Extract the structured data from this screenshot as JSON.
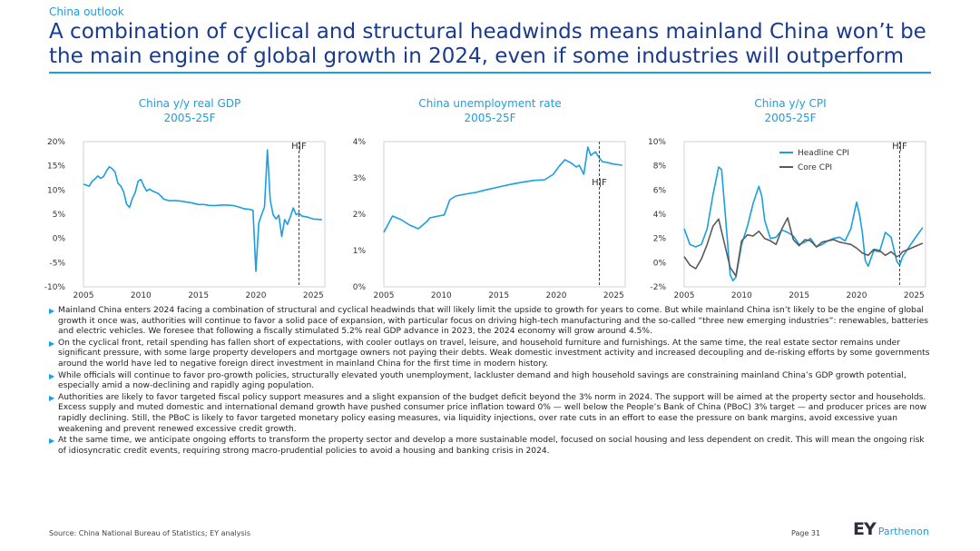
{
  "header": {
    "section": "China outlook",
    "title": "A combination of cyclical and structural headwinds means mainland China won’t be the main engine of global growth in 2024, even if some industries will outperform"
  },
  "chart_data": [
    {
      "type": "line",
      "title": "China y/y real GDP",
      "subtitle": "2005-25F",
      "marker_label": "H|F",
      "marker_x": 2023.75,
      "ylim": [
        -10,
        20
      ],
      "yticks": [
        -10,
        -5,
        0,
        5,
        10,
        15,
        20
      ],
      "ytick_labels": [
        "-10%",
        "-5%",
        "0%",
        "5%",
        "10%",
        "15%",
        "20%"
      ],
      "xlim": [
        2005,
        2026
      ],
      "xticks": [
        2005,
        2010,
        2015,
        2020,
        2025
      ],
      "xtick_labels": [
        "2005",
        "2010",
        "2015",
        "2020",
        "2025"
      ],
      "series": [
        {
          "name": "",
          "color": "#1a9fe0",
          "x": [
            2005,
            2005.25,
            2005.5,
            2005.75,
            2006,
            2006.25,
            2006.5,
            2006.75,
            2007,
            2007.25,
            2007.5,
            2007.75,
            2008,
            2008.25,
            2008.5,
            2008.75,
            2009,
            2009.25,
            2009.5,
            2009.75,
            2010,
            2010.25,
            2010.5,
            2010.75,
            2011,
            2011.5,
            2012,
            2012.5,
            2013,
            2013.5,
            2014,
            2014.5,
            2015,
            2015.5,
            2016,
            2016.5,
            2017,
            2017.5,
            2018,
            2018.5,
            2019,
            2019.5,
            2019.75,
            2020,
            2020.25,
            2020.5,
            2020.75,
            2021,
            2021.25,
            2021.5,
            2021.75,
            2022,
            2022.25,
            2022.5,
            2022.75,
            2023,
            2023.25,
            2023.5,
            2023.75,
            2024,
            2024.5,
            2025,
            2025.75
          ],
          "y": [
            11.2,
            11.0,
            10.8,
            11.8,
            12.3,
            12.9,
            12.4,
            12.8,
            13.9,
            14.8,
            14.4,
            13.7,
            11.4,
            10.8,
            9.6,
            7.1,
            6.4,
            8.2,
            9.5,
            11.8,
            12.2,
            10.8,
            9.8,
            10.2,
            9.8,
            9.3,
            8.1,
            7.8,
            7.8,
            7.7,
            7.5,
            7.3,
            7.0,
            7.0,
            6.8,
            6.8,
            6.9,
            6.9,
            6.8,
            6.5,
            6.1,
            6.0,
            5.8,
            -6.8,
            3.2,
            4.9,
            6.5,
            18.3,
            7.9,
            4.9,
            4.0,
            4.8,
            0.4,
            3.9,
            2.9,
            4.5,
            6.3,
            4.9,
            5.2,
            4.6,
            4.4,
            4.0,
            3.9
          ]
        }
      ]
    },
    {
      "type": "line",
      "title": "China unemployment rate",
      "subtitle": "2005-25F",
      "marker_label": "H|F",
      "marker_x": 2023.75,
      "ylim": [
        0,
        4
      ],
      "yticks": [
        0,
        1,
        2,
        3,
        4
      ],
      "ytick_labels": [
        "0%",
        "1%",
        "2%",
        "3%",
        "4%"
      ],
      "xlim": [
        2005,
        2026
      ],
      "xticks": [
        2005,
        2010,
        2015,
        2020,
        2025
      ],
      "xtick_labels": [
        "2005",
        "2010",
        "2015",
        "2020",
        "2025"
      ],
      "series": [
        {
          "name": "",
          "color": "#1a9fe0",
          "x": [
            2005,
            2005.75,
            2006.5,
            2007.25,
            2008,
            2008.75,
            2009,
            2009.75,
            2010.25,
            2010.75,
            2011.25,
            2012,
            2013,
            2014,
            2015,
            2016,
            2017,
            2018,
            2019,
            2019.75,
            2020.25,
            2020.75,
            2021.25,
            2021.75,
            2022,
            2022.4,
            2022.75,
            2023,
            2023.4,
            2023.75,
            2024,
            2024.5,
            2025,
            2025.75
          ],
          "y": [
            1.5,
            1.95,
            1.85,
            1.7,
            1.6,
            1.8,
            1.9,
            1.95,
            1.98,
            2.4,
            2.5,
            2.55,
            2.6,
            2.68,
            2.75,
            2.82,
            2.88,
            2.93,
            2.95,
            3.1,
            3.32,
            3.5,
            3.42,
            3.3,
            3.35,
            3.1,
            3.85,
            3.62,
            3.72,
            3.55,
            3.45,
            3.42,
            3.38,
            3.35
          ]
        }
      ]
    },
    {
      "type": "line",
      "title": "China y/y CPI",
      "subtitle": "2005-25F",
      "marker_label": "H|F",
      "marker_x": 2023.75,
      "ylim": [
        -2,
        10
      ],
      "yticks": [
        -2,
        0,
        2,
        4,
        6,
        8,
        10
      ],
      "ytick_labels": [
        "-2%",
        "0%",
        "2%",
        "4%",
        "6%",
        "8%",
        "10%"
      ],
      "xlim": [
        2005,
        2026
      ],
      "xticks": [
        2005,
        2010,
        2015,
        2020,
        2025
      ],
      "xtick_labels": [
        "2005",
        "2010",
        "2015",
        "2020",
        "2025"
      ],
      "legend_position": "top-right",
      "series": [
        {
          "name": "Headline CPI",
          "color": "#1a9fe0",
          "x": [
            2005,
            2005.5,
            2006,
            2006.5,
            2007,
            2007.5,
            2008,
            2008.25,
            2008.5,
            2009,
            2009.25,
            2009.5,
            2010,
            2010.5,
            2011,
            2011.5,
            2011.75,
            2012,
            2012.5,
            2013,
            2013.5,
            2014,
            2014.5,
            2015,
            2015.5,
            2016,
            2016.5,
            2017,
            2017.5,
            2018,
            2018.5,
            2019,
            2019.5,
            2020,
            2020.25,
            2020.5,
            2020.75,
            2021,
            2021.5,
            2022,
            2022.5,
            2023,
            2023.5,
            2023.75,
            2024,
            2024.5,
            2025,
            2025.75
          ],
          "y": [
            2.8,
            1.5,
            1.3,
            1.5,
            2.8,
            5.6,
            7.9,
            7.7,
            4.9,
            -1.0,
            -1.5,
            -1.2,
            1.5,
            3.0,
            4.9,
            6.3,
            5.5,
            3.5,
            2.0,
            2.1,
            2.7,
            2.5,
            2.2,
            1.5,
            1.7,
            2.0,
            1.3,
            1.5,
            1.8,
            2.0,
            2.1,
            1.8,
            2.8,
            5.0,
            4.0,
            2.5,
            0.2,
            -0.3,
            1.0,
            0.9,
            2.5,
            2.1,
            0.1,
            -0.2,
            0.5,
            1.2,
            1.9,
            2.9
          ]
        },
        {
          "name": "Core CPI",
          "color": "#5a5a5a",
          "x": [
            2005,
            2005.5,
            2006,
            2006.5,
            2007,
            2007.5,
            2008,
            2008.5,
            2009,
            2009.5,
            2010,
            2010.5,
            2011,
            2011.5,
            2012,
            2012.5,
            2013,
            2013.5,
            2014,
            2014.5,
            2015,
            2015.5,
            2016,
            2016.5,
            2017,
            2017.5,
            2018,
            2018.5,
            2019,
            2019.5,
            2020,
            2020.5,
            2021,
            2021.5,
            2022,
            2022.5,
            2023,
            2023.5,
            2023.75,
            2024,
            2024.5,
            2025,
            2025.75
          ],
          "y": [
            0.5,
            -0.2,
            -0.5,
            0.3,
            1.5,
            3.0,
            3.6,
            1.6,
            -0.4,
            -1.1,
            1.8,
            2.3,
            2.2,
            2.6,
            2.0,
            1.8,
            1.5,
            2.8,
            3.7,
            1.9,
            1.4,
            1.9,
            1.8,
            1.3,
            1.7,
            1.8,
            1.9,
            1.7,
            1.6,
            1.5,
            1.2,
            0.8,
            0.6,
            1.1,
            1.0,
            0.6,
            0.9,
            0.5,
            0.6,
            0.9,
            1.1,
            1.3,
            1.6
          ]
        }
      ]
    }
  ],
  "bullets": [
    "Mainland China enters 2024 facing a combination of structural and cyclical headwinds that will likely limit the upside to growth for years to come. But while mainland China isn’t likely to be the engine of global growth it once was, authorities will continue to favor a solid pace of expansion, with particular focus on driving high-tech manufacturing and the so-called “three new emerging industries”: renewables, batteries and electric vehicles. We foresee that following a fiscally stimulated 5.2% real GDP advance in 2023, the 2024 economy will grow around 4.5%.",
    "On the cyclical front, retail spending has fallen short of expectations, with cooler outlays on travel, leisure, and household furniture and furnishings. At the same time, the real estate sector remains under significant pressure, with some large property developers and mortgage owners not paying their debts. Weak domestic investment activity and increased decoupling and de-risking efforts by some governments around the world have led to negative foreign direct investment in mainland China for the first time in modern history.",
    "While officials will continue to favor pro-growth policies, structurally elevated youth unemployment, lackluster demand and high household savings are constraining mainland China’s GDP growth potential, especially amid a now-declining and rapidly aging population.",
    "Authorities are likely to favor targeted fiscal policy support measures and a slight expansion of the budget deficit beyond the 3% norm in 2024. The support will be aimed at the property sector and households. Excess supply and muted domestic and international demand growth have pushed consumer price inflation toward 0% — well below the People’s Bank of China (PBoC) 3% target — and producer prices are now rapidly declining. Still, the PBoC is likely to favor targeted monetary policy easing measures, via liquidity injections, over rate cuts in an effort to ease the pressure on bank margins, avoid excessive yuan weakening and prevent renewed excessive credit growth.",
    "At the same time, we anticipate ongoing efforts to transform the property sector and develop a more sustainable model, focused on social housing and less dependent on credit. This will mean the ongoing risk of idiosyncratic credit events, requiring strong macro-prudential policies to avoid a housing and banking crisis in 2024."
  ],
  "footer": {
    "source": "Source: China National Bureau of Statistics; EY analysis",
    "page": "Page 31",
    "logo_ey": "EY",
    "logo_parthenon": "Parthenon"
  },
  "colors": {
    "accent": "#1a9fe0",
    "title": "#1a3b8c",
    "core": "#5a5a5a"
  }
}
